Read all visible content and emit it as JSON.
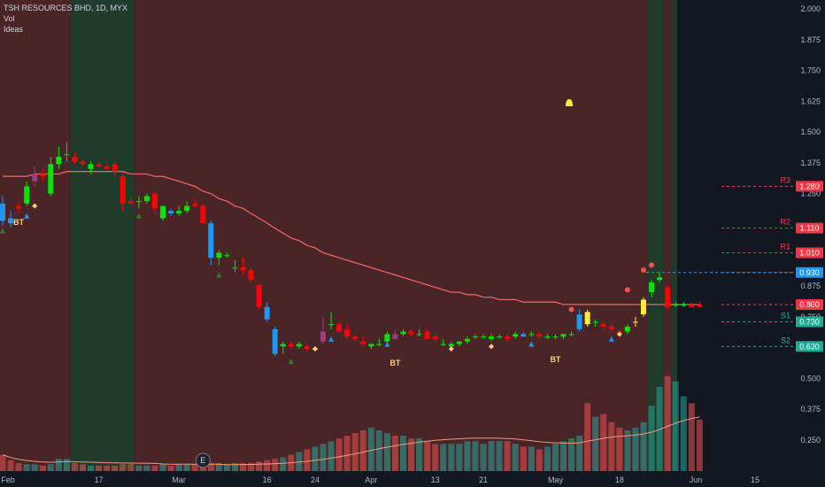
{
  "header": {
    "title": "TSH RESOURCES BHD, 1D, MYX",
    "vol": "Vol",
    "ideas": "Ideas"
  },
  "chart_data": {
    "type": "candlestick",
    "title": "TSH RESOURCES BHD, 1D, MYX",
    "ylim": [
      0.15,
      2.02
    ],
    "y_ticks": [
      "2.000",
      "1.875",
      "1.750",
      "1.625",
      "1.500",
      "1.375",
      "1.250",
      "0.875",
      "0.750",
      "0.500",
      "0.375",
      "0.250"
    ],
    "x_ticks": [
      "Feb",
      "17",
      "Mar",
      "16",
      "24",
      "Apr",
      "13",
      "21",
      "May",
      "18",
      "Jun",
      "15"
    ],
    "ohlc": [
      [
        1.21,
        1.24,
        1.12,
        1.14
      ],
      [
        1.15,
        1.18,
        1.11,
        1.13
      ],
      [
        1.2,
        1.22,
        1.17,
        1.19
      ],
      [
        1.21,
        1.3,
        1.2,
        1.28
      ],
      [
        1.3,
        1.36,
        1.28,
        1.33
      ],
      [
        1.33,
        1.35,
        1.3,
        1.32
      ],
      [
        1.25,
        1.4,
        1.24,
        1.37
      ],
      [
        1.37,
        1.44,
        1.35,
        1.4
      ],
      [
        1.41,
        1.46,
        1.38,
        1.41
      ],
      [
        1.4,
        1.42,
        1.37,
        1.38
      ],
      [
        1.38,
        1.39,
        1.36,
        1.37
      ],
      [
        1.35,
        1.38,
        1.33,
        1.37
      ],
      [
        1.37,
        1.38,
        1.35,
        1.36
      ],
      [
        1.36,
        1.37,
        1.35,
        1.35
      ],
      [
        1.37,
        1.38,
        1.32,
        1.34
      ],
      [
        1.32,
        1.33,
        1.18,
        1.21
      ],
      [
        1.22,
        1.24,
        1.2,
        1.21
      ],
      [
        1.22,
        1.24,
        1.19,
        1.22
      ],
      [
        1.22,
        1.25,
        1.21,
        1.24
      ],
      [
        1.25,
        1.26,
        1.17,
        1.19
      ],
      [
        1.15,
        1.2,
        1.14,
        1.2
      ],
      [
        1.18,
        1.19,
        1.16,
        1.17
      ],
      [
        1.17,
        1.2,
        1.16,
        1.18
      ],
      [
        1.18,
        1.22,
        1.17,
        1.2
      ],
      [
        1.21,
        1.23,
        1.19,
        1.2
      ],
      [
        1.2,
        1.21,
        1.13,
        1.13
      ],
      [
        1.13,
        1.14,
        0.96,
        0.99
      ],
      [
        0.99,
        1.02,
        0.96,
        1.01
      ],
      [
        1.0,
        1.01,
        0.99,
        1.0
      ],
      [
        0.95,
        0.98,
        0.93,
        0.95
      ],
      [
        0.95,
        0.99,
        0.92,
        0.94
      ],
      [
        0.94,
        0.95,
        0.89,
        0.9
      ],
      [
        0.88,
        0.88,
        0.78,
        0.79
      ],
      [
        0.79,
        0.81,
        0.73,
        0.74
      ],
      [
        0.7,
        0.71,
        0.59,
        0.6
      ],
      [
        0.63,
        0.65,
        0.6,
        0.64
      ],
      [
        0.64,
        0.65,
        0.62,
        0.63
      ],
      [
        0.63,
        0.65,
        0.62,
        0.64
      ],
      [
        0.63,
        0.64,
        0.61,
        0.62
      ],
      [
        0.62,
        0.63,
        0.61,
        0.62
      ],
      [
        0.65,
        0.75,
        0.64,
        0.69
      ],
      [
        0.72,
        0.77,
        0.7,
        0.72
      ],
      [
        0.72,
        0.73,
        0.69,
        0.69
      ],
      [
        0.7,
        0.72,
        0.66,
        0.67
      ],
      [
        0.67,
        0.68,
        0.65,
        0.66
      ],
      [
        0.65,
        0.67,
        0.63,
        0.64
      ],
      [
        0.63,
        0.64,
        0.62,
        0.64
      ],
      [
        0.64,
        0.66,
        0.63,
        0.64
      ],
      [
        0.65,
        0.69,
        0.64,
        0.68
      ],
      [
        0.68,
        0.7,
        0.66,
        0.66
      ],
      [
        0.68,
        0.7,
        0.67,
        0.69
      ],
      [
        0.69,
        0.7,
        0.67,
        0.68
      ],
      [
        0.68,
        0.7,
        0.67,
        0.68
      ],
      [
        0.69,
        0.7,
        0.66,
        0.66
      ],
      [
        0.67,
        0.68,
        0.65,
        0.66
      ],
      [
        0.64,
        0.66,
        0.63,
        0.64
      ],
      [
        0.63,
        0.65,
        0.62,
        0.64
      ],
      [
        0.64,
        0.65,
        0.63,
        0.65
      ],
      [
        0.65,
        0.67,
        0.64,
        0.66
      ],
      [
        0.67,
        0.68,
        0.66,
        0.67
      ],
      [
        0.67,
        0.68,
        0.66,
        0.67
      ],
      [
        0.66,
        0.68,
        0.65,
        0.67
      ],
      [
        0.67,
        0.68,
        0.66,
        0.67
      ],
      [
        0.67,
        0.68,
        0.65,
        0.66
      ],
      [
        0.67,
        0.69,
        0.66,
        0.68
      ],
      [
        0.68,
        0.69,
        0.67,
        0.67
      ],
      [
        0.68,
        0.69,
        0.67,
        0.68
      ],
      [
        0.68,
        0.69,
        0.66,
        0.67
      ],
      [
        0.67,
        0.68,
        0.66,
        0.67
      ],
      [
        0.67,
        0.68,
        0.66,
        0.67
      ],
      [
        0.67,
        0.68,
        0.66,
        0.68
      ],
      [
        0.68,
        0.69,
        0.67,
        0.68
      ],
      [
        0.7,
        0.78,
        0.69,
        0.76
      ],
      [
        0.77,
        0.78,
        0.71,
        0.72
      ],
      [
        0.73,
        0.74,
        0.71,
        0.73
      ],
      [
        0.72,
        0.73,
        0.7,
        0.71
      ],
      [
        0.71,
        0.72,
        0.69,
        0.7
      ],
      [
        0.69,
        0.7,
        0.67,
        0.68
      ],
      [
        0.69,
        0.72,
        0.68,
        0.71
      ],
      [
        0.73,
        0.75,
        0.71,
        0.73
      ],
      [
        0.76,
        0.83,
        0.75,
        0.82
      ],
      [
        0.85,
        0.9,
        0.83,
        0.89
      ],
      [
        0.9,
        0.93,
        0.89,
        0.91
      ],
      [
        0.87,
        0.88,
        0.78,
        0.79
      ],
      [
        0.8,
        0.81,
        0.79,
        0.8
      ],
      [
        0.8,
        0.81,
        0.79,
        0.8
      ],
      [
        0.8,
        0.81,
        0.79,
        0.79
      ],
      [
        0.8,
        0.81,
        0.79,
        0.79
      ]
    ],
    "volume": [
      12,
      8,
      6,
      5,
      5,
      4,
      5,
      9,
      9,
      6,
      5,
      4,
      4,
      4,
      4,
      5,
      5,
      4,
      4,
      4,
      5,
      4,
      5,
      5,
      5,
      5,
      6,
      6,
      5,
      6,
      6,
      6,
      7,
      8,
      9,
      10,
      12,
      14,
      16,
      18,
      20,
      22,
      24,
      26,
      28,
      30,
      32,
      30,
      28,
      26,
      26,
      24,
      24,
      22,
      20,
      20,
      20,
      20,
      22,
      22,
      20,
      22,
      22,
      22,
      20,
      18,
      18,
      16,
      18,
      20,
      22,
      24,
      26,
      50,
      40,
      42,
      36,
      32,
      30,
      32,
      36,
      48,
      62,
      70,
      66,
      55,
      50,
      38
    ],
    "sma": [
      1.32,
      1.32,
      1.32,
      1.32,
      1.33,
      1.33,
      1.33,
      1.33,
      1.34,
      1.34,
      1.34,
      1.34,
      1.34,
      1.34,
      1.34,
      1.34,
      1.33,
      1.33,
      1.33,
      1.32,
      1.32,
      1.31,
      1.3,
      1.29,
      1.28,
      1.26,
      1.25,
      1.23,
      1.22,
      1.2,
      1.19,
      1.17,
      1.15,
      1.13,
      1.11,
      1.09,
      1.07,
      1.06,
      1.04,
      1.03,
      1.01,
      1.0,
      0.99,
      0.98,
      0.97,
      0.96,
      0.95,
      0.94,
      0.93,
      0.92,
      0.91,
      0.9,
      0.89,
      0.88,
      0.87,
      0.86,
      0.85,
      0.85,
      0.84,
      0.84,
      0.83,
      0.83,
      0.82,
      0.82,
      0.82,
      0.81,
      0.81,
      0.81,
      0.81,
      0.81,
      0.8,
      0.8,
      0.8,
      0.8,
      0.8,
      0.8,
      0.8,
      0.8,
      0.8,
      0.8,
      0.8,
      0.8,
      0.8,
      0.8,
      0.8,
      0.8,
      0.8,
      0.8
    ],
    "background_bands": [
      {
        "from": 0,
        "to": 9,
        "color": "#4a2528"
      },
      {
        "from": 9,
        "to": 17,
        "color": "#203b2b"
      },
      {
        "from": 17,
        "to": 81,
        "color": "#4a2528"
      },
      {
        "from": 81,
        "to": 83,
        "color": "#203b2b"
      },
      {
        "from": 83,
        "to": 84,
        "color": "#4a2528"
      },
      {
        "from": 84,
        "to": 107,
        "color": "#203b2b"
      }
    ],
    "levels": [
      {
        "name": "R3",
        "value": 1.28,
        "label": "1.280",
        "color": "#f23645"
      },
      {
        "name": "R2",
        "value": 1.11,
        "label": "1.110",
        "color": "#f23645"
      },
      {
        "name": "R1",
        "value": 1.01,
        "label": "1.010",
        "color": "#f23645"
      },
      {
        "name": "",
        "value": 0.93,
        "label": "0.930",
        "color": "#2196f3"
      },
      {
        "name": "",
        "value": 0.8,
        "label": "0.800",
        "color": "#f23645"
      },
      {
        "name": "S1",
        "value": 0.73,
        "label": "0.730",
        "color": "#22ab94"
      },
      {
        "name": "S2",
        "value": 0.63,
        "label": "0.630",
        "color": "#22ab94"
      }
    ],
    "markers": [
      {
        "text": "BT",
        "index": 2
      },
      {
        "text": "BT",
        "index": 49
      },
      {
        "text": "BT",
        "index": 69
      },
      {
        "text": "E",
        "index": 25
      },
      {
        "text": "E",
        "index": 103
      }
    ],
    "colors": {
      "up": "#00e600",
      "down": "#ff0000",
      "blue": "#2196f3",
      "purple": "#9c3d7b",
      "yellow": "#ffeb3b",
      "sma": "#f06060"
    }
  }
}
